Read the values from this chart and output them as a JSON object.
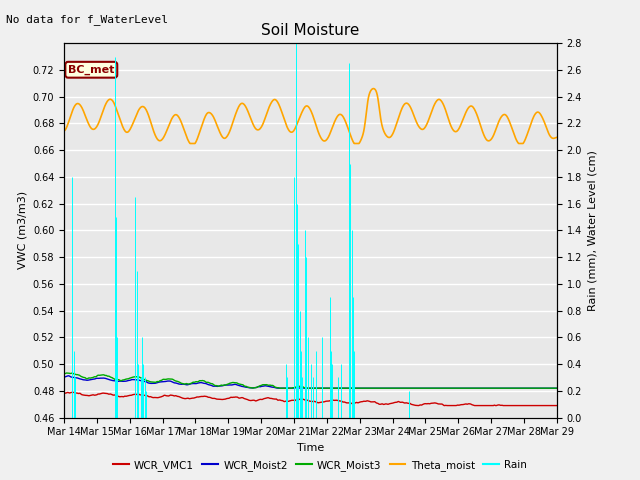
{
  "title": "Soil Moisture",
  "top_note": "No data for f_WaterLevel",
  "box_label": "BC_met",
  "xlabel": "Time",
  "ylabel_left": "VWC (m3/m3)",
  "ylabel_right": "Rain (mm), Water Level (cm)",
  "ylim_left": [
    0.46,
    0.74
  ],
  "ylim_right": [
    0.0,
    2.8
  ],
  "x_tick_labels": [
    "Mar 14",
    "Mar 15",
    "Mar 16",
    "Mar 17",
    "Mar 18",
    "Mar 19",
    "Mar 20",
    "Mar 21",
    "Mar 22",
    "Mar 23",
    "Mar 24",
    "Mar 25",
    "Mar 26",
    "Mar 27",
    "Mar 28",
    "Mar 29"
  ],
  "y_ticks_left": [
    0.46,
    0.48,
    0.5,
    0.52,
    0.54,
    0.56,
    0.58,
    0.6,
    0.62,
    0.64,
    0.66,
    0.68,
    0.7,
    0.72
  ],
  "y_ticks_right": [
    0.0,
    0.2,
    0.4,
    0.6,
    0.8,
    1.0,
    1.2,
    1.4,
    1.6,
    1.8,
    2.0,
    2.2,
    2.4,
    2.6,
    2.8
  ],
  "bg_color": "#e8e8e8",
  "wcr_vmc1_color": "#cc0000",
  "wcr_moist2_color": "#0000cc",
  "wcr_moist3_color": "#00aa00",
  "theta_moist_color": "#ffa500",
  "rain_color": "#00ffff",
  "legend_items": [
    "WCR_VMC1",
    "WCR_Moist2",
    "WCR_Moist3",
    "Theta_moist",
    "Rain"
  ],
  "n_days": 15,
  "hours_per_day": 24
}
